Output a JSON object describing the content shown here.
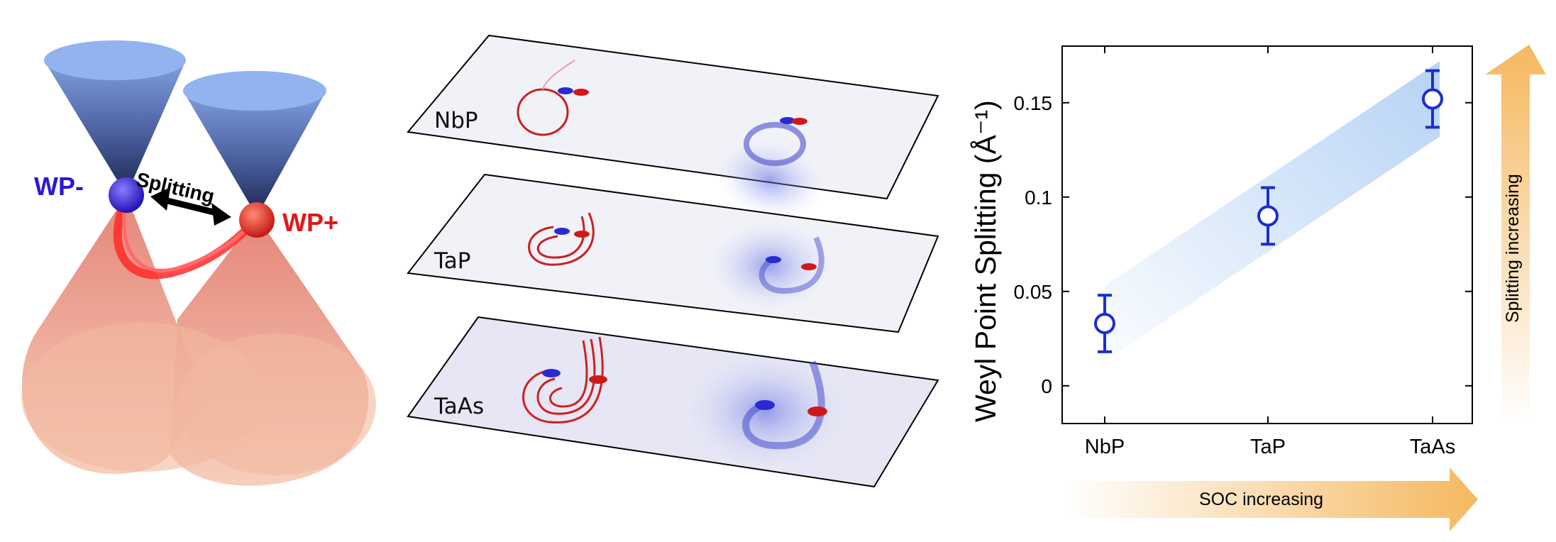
{
  "schematic": {
    "wp_minus": "WP-",
    "wp_plus": "WP+",
    "splitting": "Splitting",
    "wp_minus_color": "#2a18d8",
    "wp_plus_color": "#e01818",
    "cone_color_top": "#6f8fd6",
    "cone_color_bottom": "#f0a080"
  },
  "materials": [
    {
      "name": "NbP"
    },
    {
      "name": "TaP"
    },
    {
      "name": "TaAs"
    }
  ],
  "chart_data": {
    "type": "scatter",
    "categories": [
      "NbP",
      "TaP",
      "TaAs"
    ],
    "series": [
      {
        "values": [
          0.033,
          0.09,
          0.152
        ],
        "errors": [
          0.015,
          0.015,
          0.015
        ]
      }
    ],
    "ylabel": "Weyl Point Splitting (Å⁻¹)",
    "yticks": [
      "0",
      "0.05",
      "0.1",
      "0.15"
    ],
    "ylim": [
      -0.02,
      0.18
    ],
    "marker_color": "#1a2fd0",
    "band_color": "#a9cbf3",
    "arrow_color": "#f5b860"
  },
  "annotations": {
    "x_arrow": "SOC increasing",
    "y_arrow": "Splitting increasing"
  }
}
